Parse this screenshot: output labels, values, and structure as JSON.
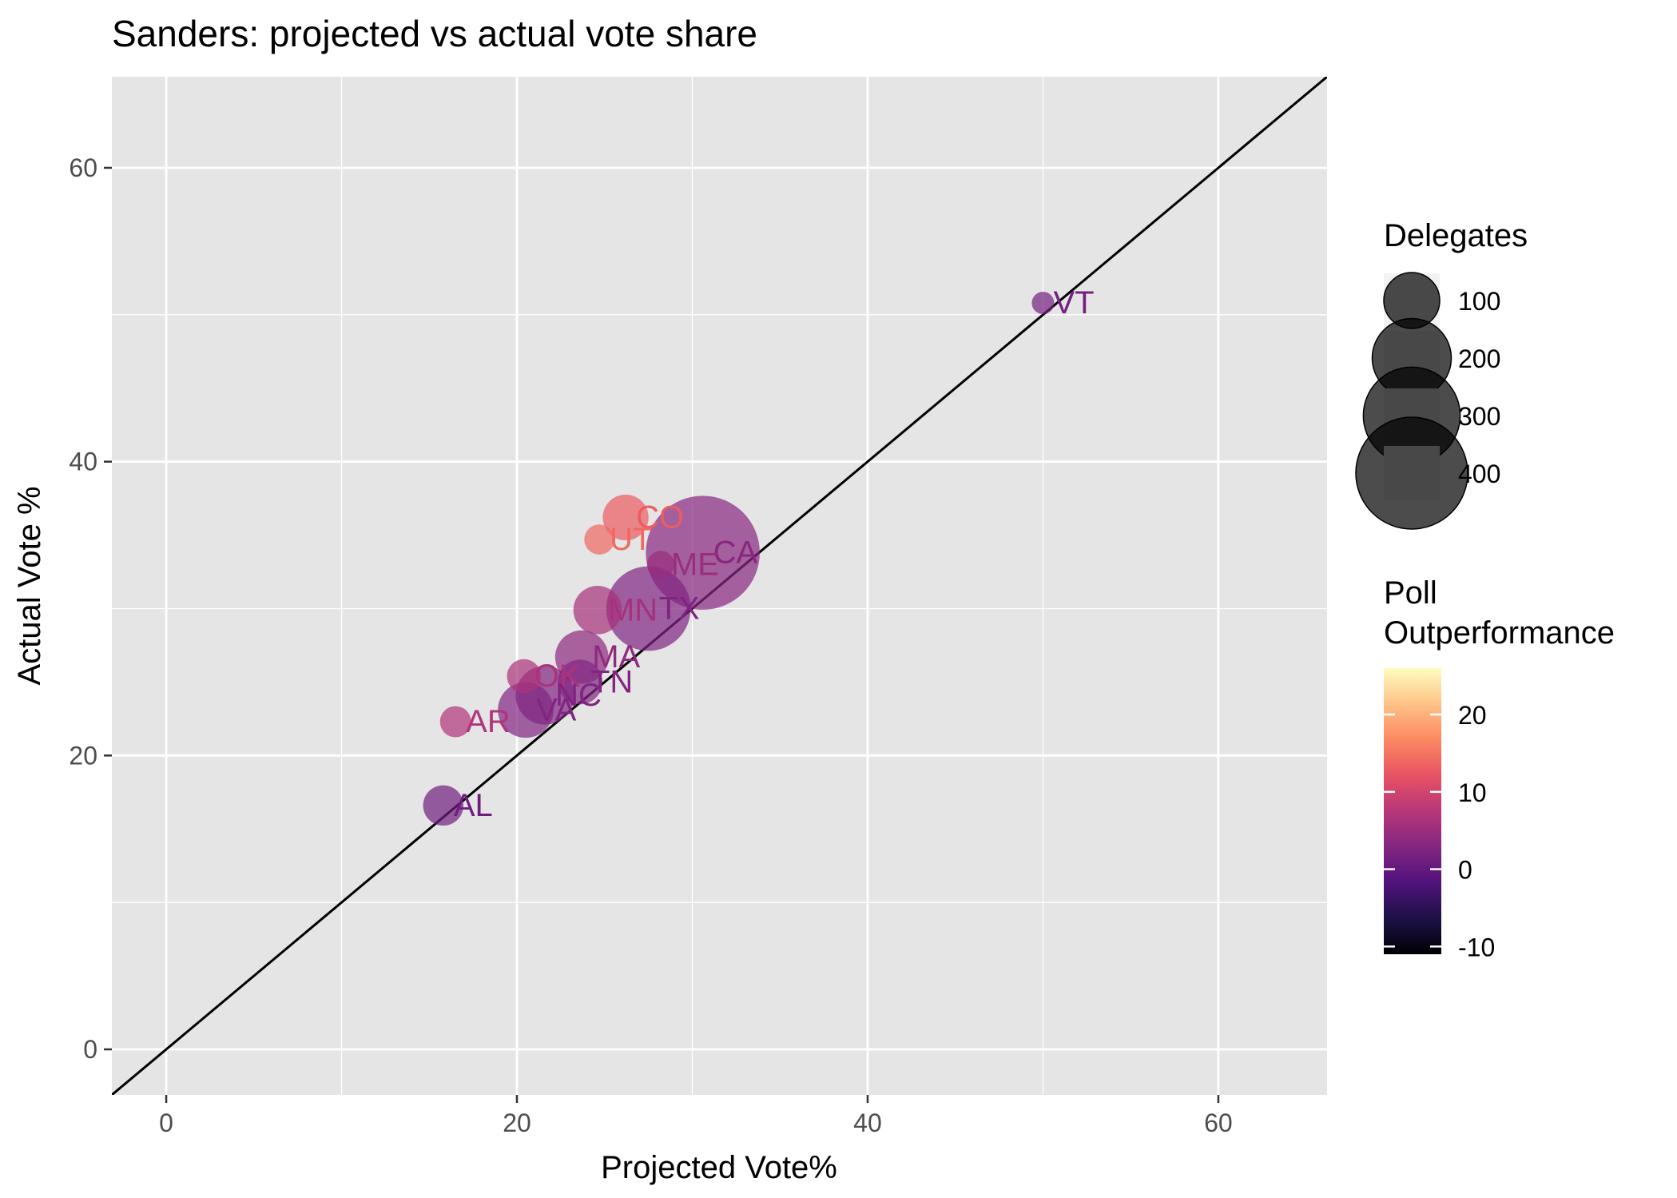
{
  "chart_data": {
    "type": "scatter",
    "title": "Sanders: projected vs actual vote share",
    "xlabel": "Projected Vote%",
    "ylabel": "Actual Vote %",
    "xlim": [
      -3.1,
      66.2
    ],
    "ylim": [
      -3.1,
      66.2
    ],
    "x_ticks": [
      0,
      20,
      40,
      60
    ],
    "y_ticks": [
      0,
      20,
      40,
      60
    ],
    "x_minor": [
      10,
      30,
      50
    ],
    "y_minor": [
      10,
      30,
      50
    ],
    "reference_line": {
      "type": "identity",
      "slope": 1,
      "intercept": 0
    },
    "points": [
      {
        "state": "VT",
        "projected": 50.0,
        "actual": 50.8,
        "delegates": 16,
        "outperformance": 1.6
      },
      {
        "state": "CO",
        "projected": 26.2,
        "actual": 36.2,
        "delegates": 67,
        "outperformance": 13.0
      },
      {
        "state": "UT",
        "projected": 24.7,
        "actual": 34.7,
        "delegates": 29,
        "outperformance": 14.0
      },
      {
        "state": "CA",
        "projected": 30.6,
        "actual": 33.8,
        "delegates": 415,
        "outperformance": 3.2
      },
      {
        "state": "ME",
        "projected": 28.2,
        "actual": 33.0,
        "delegates": 24,
        "outperformance": 4.8
      },
      {
        "state": "MN",
        "projected": 24.6,
        "actual": 29.9,
        "delegates": 75,
        "outperformance": 6.0
      },
      {
        "state": "TX",
        "projected": 27.5,
        "actual": 30.0,
        "delegates": 228,
        "outperformance": 2.5
      },
      {
        "state": "MA",
        "projected": 23.7,
        "actual": 26.7,
        "delegates": 91,
        "outperformance": 4.0
      },
      {
        "state": "OK",
        "projected": 20.4,
        "actual": 25.4,
        "delegates": 37,
        "outperformance": 6.5
      },
      {
        "state": "TN",
        "projected": 23.6,
        "actual": 25.0,
        "delegates": 64,
        "outperformance": 2.6
      },
      {
        "state": "NC",
        "projected": 21.6,
        "actual": 24.1,
        "delegates": 110,
        "outperformance": 2.5
      },
      {
        "state": "VA",
        "projected": 20.5,
        "actual": 23.1,
        "delegates": 99,
        "outperformance": 2.6
      },
      {
        "state": "AR",
        "projected": 16.5,
        "actual": 22.3,
        "delegates": 31,
        "outperformance": 7.0
      },
      {
        "state": "AL",
        "projected": 15.8,
        "actual": 16.6,
        "delegates": 52,
        "outperformance": 1.0
      }
    ],
    "size_legend": {
      "title": "Delegates",
      "entries": [
        {
          "label": "100",
          "value": 100
        },
        {
          "label": "200",
          "value": 200
        },
        {
          "label": "300",
          "value": 300
        },
        {
          "label": "400",
          "value": 400
        }
      ]
    },
    "color_legend": {
      "title_line1": "Poll",
      "title_line2": "Outperformance",
      "range": [
        -11,
        26
      ],
      "ticks": [
        {
          "label": "-10",
          "value": -10
        },
        {
          "label": "0",
          "value": 0
        },
        {
          "label": "10",
          "value": 10
        },
        {
          "label": "20",
          "value": 20
        }
      ],
      "palette": [
        "#000004",
        "#1d1147",
        "#51127c",
        "#832681",
        "#b73779",
        "#e75263",
        "#fc8961",
        "#fec287",
        "#fcfdbf"
      ]
    },
    "colors": {
      "panel_background": "#e5e5e5",
      "grid": "#ffffff",
      "reference_line": "#000000",
      "axis_text": "#4d4d4d"
    }
  }
}
